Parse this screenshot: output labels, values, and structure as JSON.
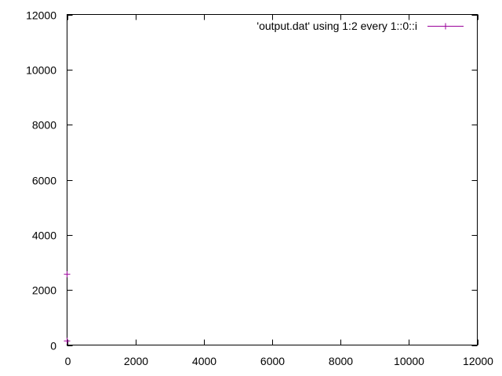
{
  "chart_data": {
    "type": "scatter",
    "title": "",
    "xlabel": "",
    "ylabel": "",
    "xlim": [
      0,
      12000
    ],
    "ylim": [
      0,
      12000
    ],
    "x_ticks": [
      0,
      2000,
      4000,
      6000,
      8000,
      10000,
      12000
    ],
    "y_ticks": [
      0,
      2000,
      4000,
      6000,
      8000,
      10000,
      12000
    ],
    "x_tick_labels": [
      "0",
      "2000",
      "4000",
      "6000",
      "8000",
      "10000",
      "12000"
    ],
    "y_tick_labels": [
      "0",
      "2000",
      "4000",
      "6000",
      "8000",
      "10000",
      "12000"
    ],
    "grid": false,
    "legend_position": "top-right",
    "series": [
      {
        "name": "'output.dat' using 1:2 every 1::0::i",
        "color": "#990099",
        "marker": "plus",
        "points": [
          {
            "x": 0,
            "y": 2570
          },
          {
            "x": 0,
            "y": 150
          }
        ]
      }
    ]
  }
}
